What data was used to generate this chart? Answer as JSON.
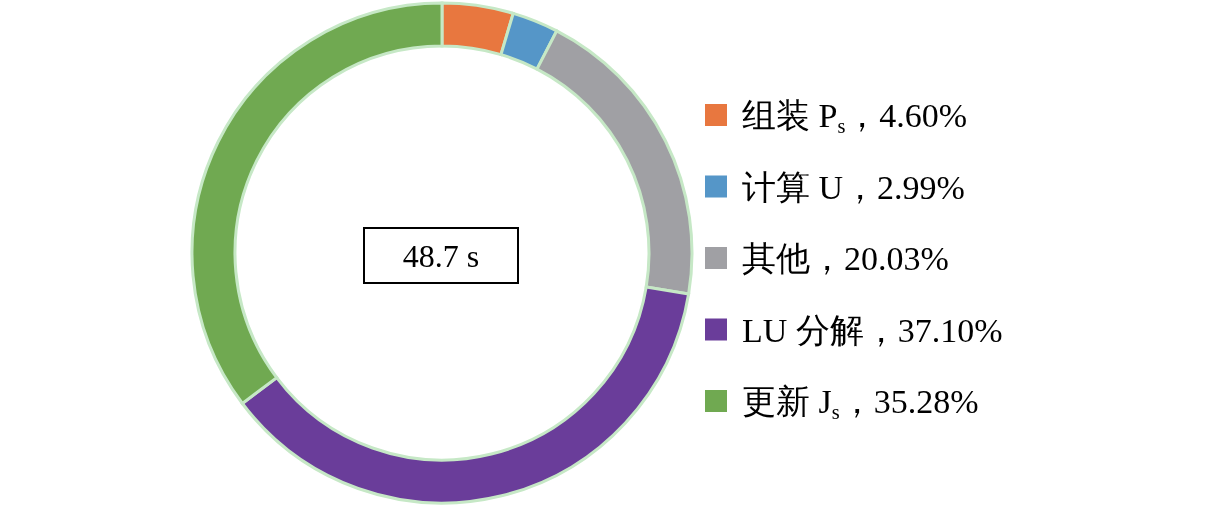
{
  "chart_data": {
    "type": "donut",
    "categories": [
      "组装 P$_{s}$，4.60%",
      "计算 U，2.99%",
      "其他，20.03%",
      "LU 分解，37.10%",
      "更新 J$_{s}$，35.28%"
    ],
    "values": [
      4.6,
      2.99,
      20.03,
      37.1,
      35.28
    ],
    "colors": [
      "#e8773f",
      "#5596c8",
      "#a0a0a4",
      "#6a3d9a",
      "#70a951"
    ],
    "annotations": [
      "48.7 s"
    ],
    "legend": "right"
  }
}
